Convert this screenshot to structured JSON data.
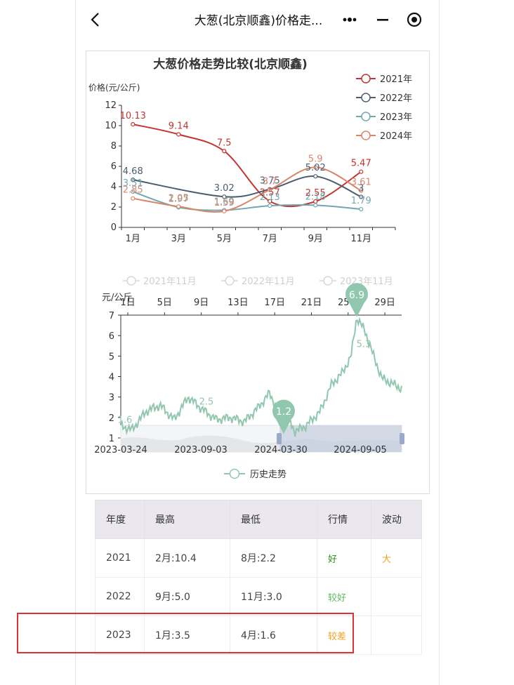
{
  "header": {
    "title": "大葱(北京顺鑫)价格走..."
  },
  "colors": {
    "series_2021": "#c23531",
    "series_2022": "#4a5e70",
    "series_2023": "#6fa8b0",
    "series_2024": "#d9866a",
    "history": "#91c7ae",
    "good": "#2e8b1e",
    "ok": "#5cb85c",
    "bad": "#f0a020",
    "highlight": "#e03131"
  },
  "chart_data": [
    {
      "type": "line",
      "title": "大葱价格走势比较(北京顺鑫)",
      "ylabel": "价格(元/公斤)",
      "ylim": [
        0,
        12
      ],
      "yticks": [
        0,
        2,
        4,
        6,
        8,
        10,
        12
      ],
      "xticks": [
        "1月",
        "3月",
        "5月",
        "7月",
        "9月",
        "11月"
      ],
      "legend_position": "top-right",
      "series": [
        {
          "name": "2021年",
          "points": [
            [
              1,
              10.13
            ],
            [
              3,
              9.14
            ],
            [
              5,
              7.5
            ],
            [
              7,
              2.57
            ],
            [
              9,
              2.55
            ],
            [
              11,
              5.47
            ]
          ]
        },
        {
          "name": "2022年",
          "points": [
            [
              1,
              4.68
            ],
            [
              5,
              3.02
            ],
            [
              7,
              3.75
            ],
            [
              9,
              5.02
            ],
            [
              11,
              3.0
            ]
          ]
        },
        {
          "name": "2023年",
          "points": [
            [
              1,
              3.51
            ],
            [
              3,
              1.97
            ],
            [
              5,
              1.69
            ],
            [
              7,
              2.13
            ],
            [
              9,
              2.18
            ],
            [
              11,
              1.79
            ]
          ]
        },
        {
          "name": "2024年",
          "points": [
            [
              1,
              2.85
            ],
            [
              3,
              2.05
            ],
            [
              5,
              1.59
            ],
            [
              7,
              3.7
            ],
            [
              9,
              5.9
            ],
            [
              11,
              3.61
            ]
          ]
        }
      ]
    },
    {
      "type": "line",
      "ylabel": "元/公斤",
      "ylim": [
        1,
        7
      ],
      "yticks": [
        1,
        2,
        3,
        4,
        5,
        6,
        7
      ],
      "x_top_ticks": [
        "1日",
        "5日",
        "9日",
        "13日",
        "17日",
        "21日",
        "25日",
        "29日"
      ],
      "x_bottom_ticks": [
        "2023-03-24",
        "2023-09-03",
        "2024-03-30",
        "2024-09-05"
      ],
      "legend_top": [
        "2021年11月",
        "2022年11月",
        "2023年11月"
      ],
      "series": [
        {
          "name": "历史走势"
        }
      ],
      "annotations": [
        {
          "label": "1.6",
          "value": 1.6
        },
        {
          "label": "2.5",
          "value": 2.5
        },
        {
          "label": "5.3",
          "value": 5.3
        }
      ],
      "markers": [
        {
          "label": "6.9",
          "value": 6.9,
          "kind": "max"
        },
        {
          "label": "1.2",
          "value": 1.2,
          "kind": "min"
        }
      ]
    }
  ],
  "table": {
    "headers": [
      "年度",
      "最高",
      "最低",
      "行情",
      "波动"
    ],
    "rows": [
      {
        "year": "2021",
        "high": "2月:10.4",
        "low": "8月:2.2",
        "trend": "好",
        "vol": "大"
      },
      {
        "year": "2022",
        "high": "9月:5.0",
        "low": "11月:3.0",
        "trend": "较好",
        "vol": ""
      },
      {
        "year": "2023",
        "high": "1月:3.5",
        "low": "4月:1.6",
        "trend": "较差",
        "vol": ""
      }
    ]
  }
}
